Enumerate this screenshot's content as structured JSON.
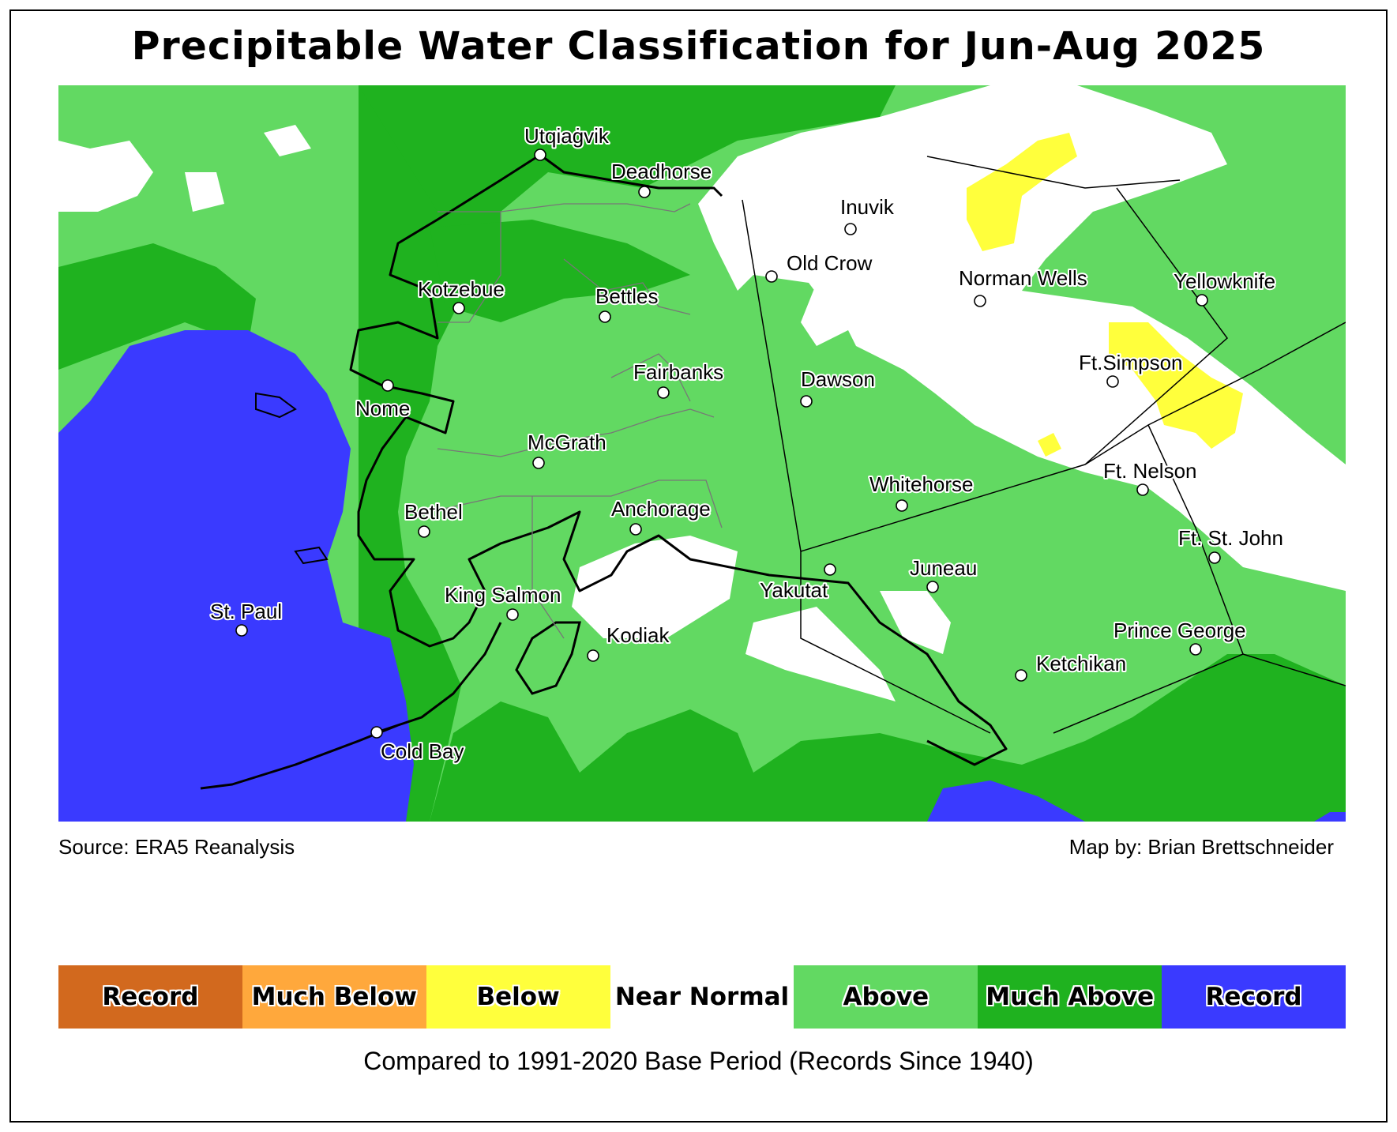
{
  "title": "Precipitable Water Classification for Jun-Aug 2025",
  "source": "Source: ERA5 Reanalysis",
  "credit": "Map by: Brian Brettschneider",
  "base_period": "Compared to 1991-2020 Base Period   (Records Since 1940)",
  "legend": [
    {
      "label": "Record",
      "color": "#d2691e"
    },
    {
      "label": "Much Below",
      "color": "#ffa83c"
    },
    {
      "label": "Below",
      "color": "#ffff3c"
    },
    {
      "label": "Near Normal",
      "color": "#ffffff"
    },
    {
      "label": "Above",
      "color": "#62d962"
    },
    {
      "label": "Much Above",
      "color": "#1fb21f"
    },
    {
      "label": "Record",
      "color": "#3a3aff"
    }
  ],
  "cities": [
    "Utqiaġvik",
    "Deadhorse",
    "Inuvik",
    "Old Crow",
    "Norman Wells",
    "Yellowknife",
    "Kotzebue",
    "Bettles",
    "Fairbanks",
    "Dawson",
    "Ft.Simpson",
    "Nome",
    "McGrath",
    "Whitehorse",
    "Ft. Nelson",
    "Bethel",
    "Anchorage",
    "Ft. St. John",
    "Juneau",
    "Yakutat",
    "King Salmon",
    "St. Paul",
    "Kodiak",
    "Prince George",
    "Ketchikan",
    "Cold Bay"
  ]
}
